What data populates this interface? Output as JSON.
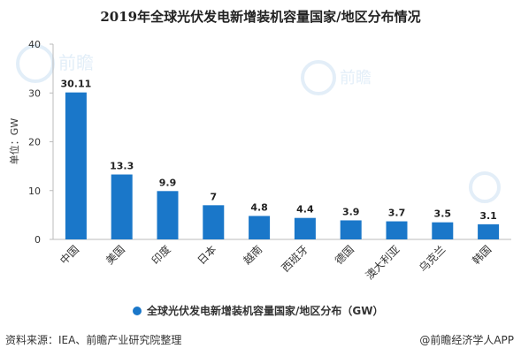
{
  "title": "2019年全球光伏发电新增装机容量国家/地区分布情况",
  "source_text": "资料来源：IEA、前瞻产业研究院整理",
  "credit_text": "@前瞻经济学人APP",
  "watermark_text": "前瞻",
  "colors": {
    "bar": "#1a77c9",
    "axis": "#999999",
    "text": "#333333"
  },
  "chart_data": {
    "type": "bar",
    "title": "2019年全球光伏发电新增装机容量国家/地区分布情况",
    "ylabel": "单位：GW",
    "xlabel": "",
    "ylim": [
      0,
      40
    ],
    "yticks": [
      0,
      10,
      20,
      30,
      40
    ],
    "grid": false,
    "legend_position": "bottom",
    "categories": [
      "中国",
      "美国",
      "印度",
      "日本",
      "越南",
      "西班牙",
      "德国",
      "澳大利亚",
      "乌克兰",
      "韩国"
    ],
    "series": [
      {
        "name": "全球光伏发电新增装机容量国家/地区分布（GW）",
        "values": [
          30.11,
          13.3,
          9.9,
          7,
          4.8,
          4.4,
          3.9,
          3.7,
          3.5,
          3.1
        ],
        "labels": [
          "30.11",
          "13.3",
          "9.9",
          "7",
          "4.8",
          "4.4",
          "3.9",
          "3.7",
          "3.5",
          "3.1"
        ]
      }
    ]
  }
}
